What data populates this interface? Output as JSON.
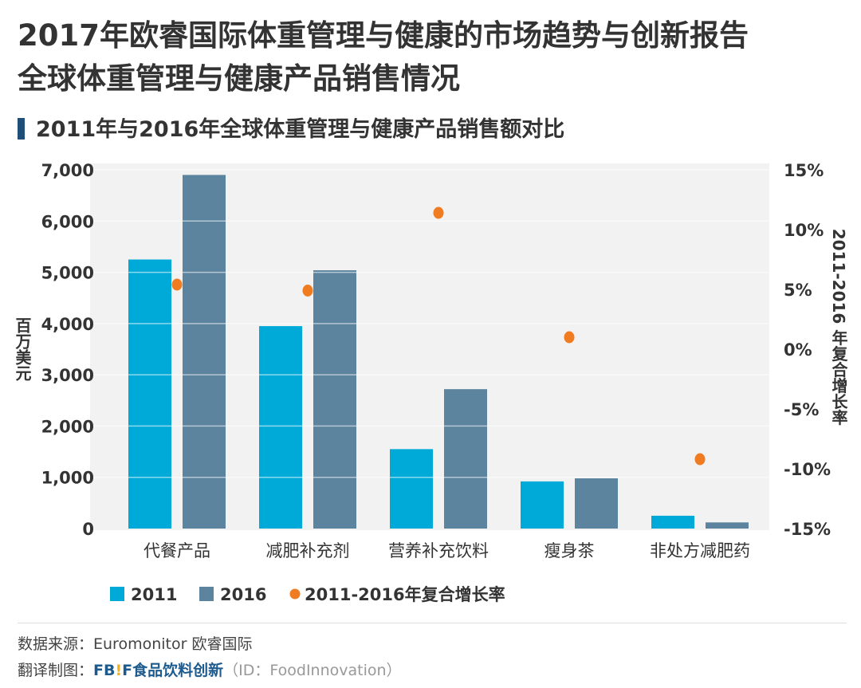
{
  "title_line1": "2017年欧睿国际体重管理与健康的市场趋势与创新报告",
  "title_line2": "全球体重管理与健康产品销售情况",
  "subtitle": "2011年与2016年全球体重管理与健康产品销售额对比",
  "chart_data": {
    "type": "bar",
    "title": "2011年与2016年全球体重管理与健康产品销售额对比",
    "categories": [
      "代餐产品",
      "减肥补充剂",
      "营养补充饮料",
      "瘦身茶",
      "非处方减肥药"
    ],
    "series": [
      {
        "name": "2011",
        "type": "bar",
        "axis": "left",
        "color": "#00aad8",
        "values": [
          5250,
          3950,
          1550,
          920,
          250
        ]
      },
      {
        "name": "2016",
        "type": "bar",
        "axis": "left",
        "color": "#5c849f",
        "values": [
          6900,
          5040,
          2720,
          980,
          120
        ]
      },
      {
        "name": "2011-2016年复合增长率",
        "type": "scatter",
        "axis": "right",
        "color": "#f07c22",
        "values": [
          5.4,
          4.9,
          11.4,
          1.0,
          -9.2
        ]
      }
    ],
    "ylabel": "百万美元",
    "ylabel_right": "2011-2016 年复合增长率",
    "ylim": [
      0,
      7000
    ],
    "ylim_right": [
      -15,
      15
    ],
    "yticks": [
      "0",
      "1,000",
      "2,000",
      "3,000",
      "4,000",
      "5,000",
      "6,000",
      "7,000"
    ],
    "yticks_right": [
      "-15%",
      "-10%",
      "-5%",
      "0%",
      "5%",
      "10%",
      "15%"
    ],
    "grid": true,
    "legend_position": "bottom-left",
    "plot_background": "#f2f2f2"
  },
  "footer": {
    "source": "数据来源：Euromonitor 欧睿国际",
    "credit_label": "翻译制图：",
    "logo_fb": "FB",
    "logo_ex": "!",
    "logo_f": "F",
    "logo_name": "食品饮料创新",
    "credit_id": "（ID：FoodInnovation）"
  }
}
